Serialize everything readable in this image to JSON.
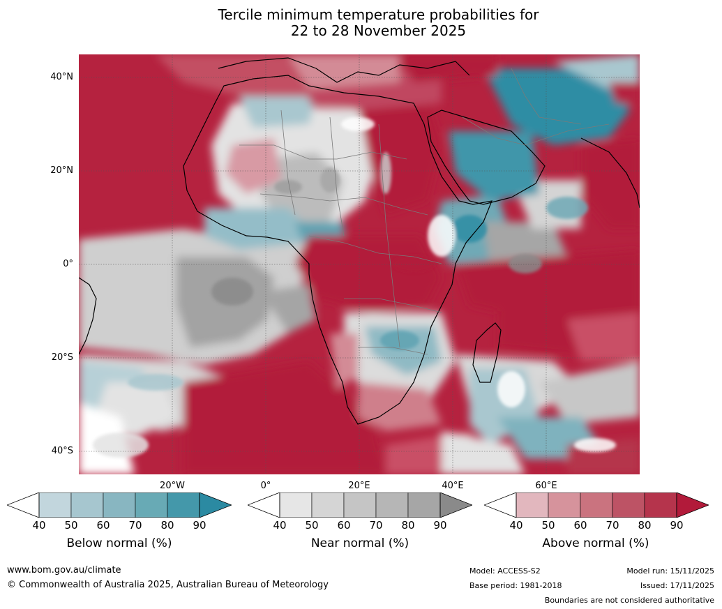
{
  "title": {
    "line1": "Tercile minimum temperature probabilities for",
    "line2": "22 to 28 November 2025"
  },
  "map": {
    "lat_labels": [
      "40°N",
      "20°N",
      "0°",
      "20°S",
      "40°S"
    ],
    "lon_labels": [
      "20°W",
      "0°",
      "20°E",
      "40°E",
      "60°E"
    ]
  },
  "colorbars": [
    {
      "label": "Below normal (%)",
      "ticks": [
        "40",
        "50",
        "60",
        "70",
        "80",
        "90"
      ],
      "colors": [
        "#c2d6dd",
        "#a6c6cf",
        "#88b6c1",
        "#68aab5",
        "#4498aa",
        "#2b8aa2"
      ]
    },
    {
      "label": "Near normal (%)",
      "ticks": [
        "40",
        "50",
        "60",
        "70",
        "80",
        "90"
      ],
      "colors": [
        "#e6e6e6",
        "#d5d5d5",
        "#c5c5c5",
        "#b6b6b6",
        "#a6a6a6",
        "#8a8a8a"
      ]
    },
    {
      "label": "Above normal (%)",
      "ticks": [
        "40",
        "50",
        "60",
        "70",
        "80",
        "90"
      ],
      "colors": [
        "#e2b7be",
        "#d6939c",
        "#ca737f",
        "#bd5365",
        "#b5344c",
        "#b21a3a"
      ]
    }
  ],
  "footer": {
    "website": "www.bom.gov.au/climate",
    "copyright": "© Commonwealth of Australia 2025, Australian Bureau of Meteorology",
    "model": "Model: ACCESS-S2",
    "base_period": "Base period: 1981-2018",
    "model_run": "Model run: 15/11/2025",
    "issued": "Issued: 17/11/2025",
    "boundaries": "Boundaries are not considered authoritative"
  },
  "colors": {
    "above_strong": "#b21a3a",
    "above_mid": "#c95066",
    "above_light": "#dca2ac",
    "near_light": "#e1e1e1",
    "near_mid": "#c8c8c8",
    "near_dark": "#9e9e9e",
    "below_light": "#a9c7cf",
    "below_mid": "#6fa9b6",
    "below_dark": "#2f8da4"
  }
}
